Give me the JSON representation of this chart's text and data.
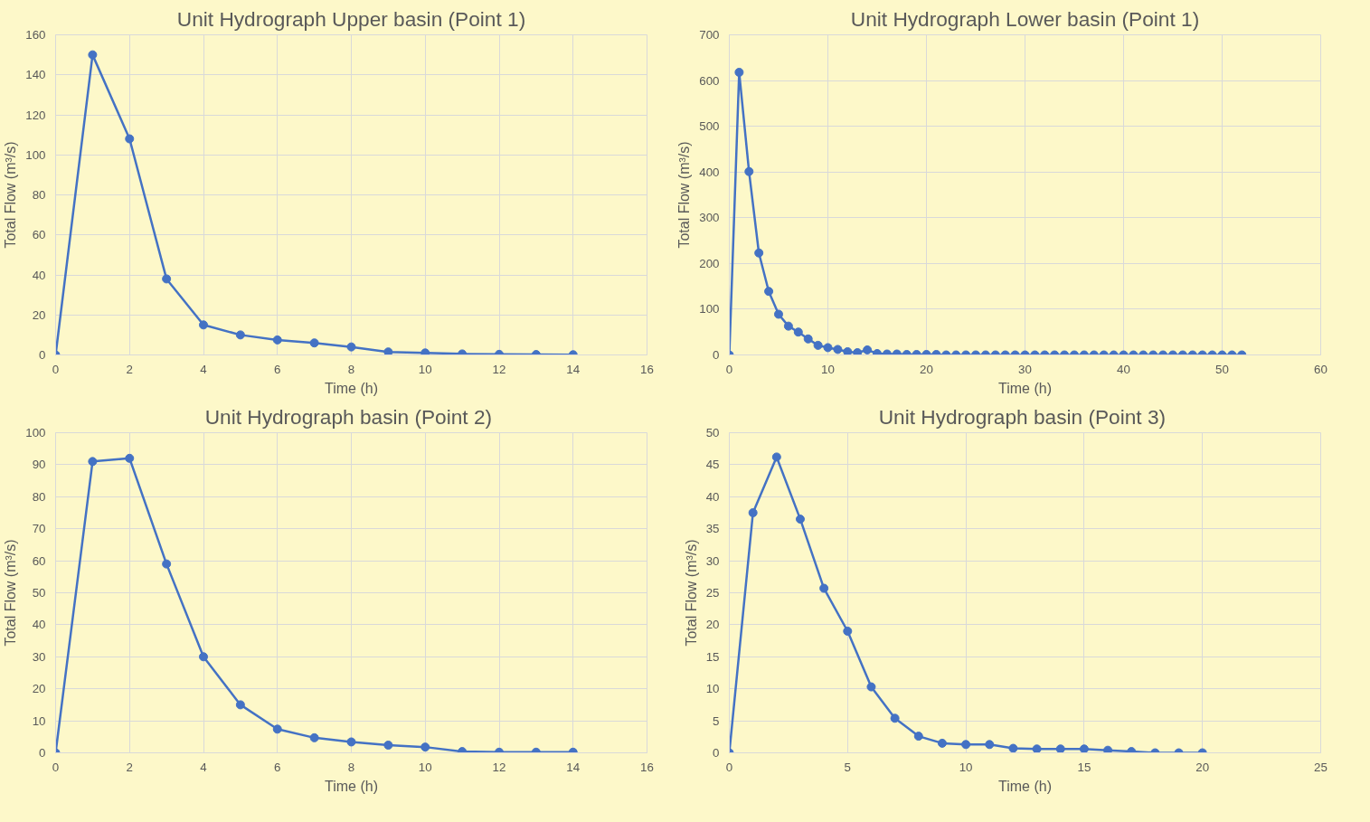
{
  "chart_data": [
    {
      "type": "line",
      "title": "Unit Hydrograph Upper basin (Point 1)",
      "xlabel": "Time (h)",
      "ylabel": "Total Flow (m³/s)",
      "x": [
        0,
        1,
        2,
        3,
        4,
        5,
        6,
        7,
        8,
        9,
        10,
        11,
        12,
        13,
        14
      ],
      "series": [
        {
          "color": "#4472c4",
          "values": [
            0,
            150,
            108,
            38,
            15,
            10,
            7.5,
            6,
            4,
            1.5,
            1,
            0.5,
            0.3,
            0.2,
            0.1
          ]
        }
      ],
      "xlim": [
        0,
        16
      ],
      "xticks": [
        0,
        2,
        4,
        6,
        8,
        10,
        12,
        14,
        16
      ],
      "ylim": [
        0,
        160
      ],
      "yticks": [
        0,
        20,
        40,
        60,
        80,
        100,
        120,
        140,
        160
      ],
      "grid": true,
      "marker": "circle",
      "line_style": "solid"
    },
    {
      "type": "line",
      "title": "Unit Hydrograph Lower basin (Point 1)",
      "xlabel": "Time (h)",
      "ylabel": "Total Flow (m³/s)",
      "x": [
        0,
        1,
        2,
        3,
        4,
        5,
        6,
        7,
        8,
        9,
        10,
        11,
        12,
        13,
        14,
        15,
        16,
        17,
        18,
        19,
        20,
        21,
        22,
        23,
        24,
        25,
        26,
        27,
        28,
        29,
        30,
        31,
        32,
        33,
        34,
        35,
        36,
        37,
        38,
        39,
        40,
        41,
        42,
        43,
        44,
        45,
        46,
        47,
        48,
        49,
        50,
        51,
        52
      ],
      "series": [
        {
          "color": "#4472c4",
          "values": [
            0,
            618,
            401,
            223,
            139,
            89,
            63,
            50,
            35,
            21,
            16,
            12,
            7,
            5,
            11,
            3,
            2,
            2,
            1,
            1,
            1,
            1,
            0,
            0,
            0,
            0,
            0,
            0,
            0,
            0,
            0,
            0,
            0,
            0,
            0,
            0,
            0,
            0,
            0,
            0,
            0,
            0,
            0,
            0,
            0,
            0,
            0,
            0,
            0,
            0,
            0,
            0,
            0
          ]
        }
      ],
      "xlim": [
        0,
        60
      ],
      "xticks": [
        0,
        10,
        20,
        30,
        40,
        50,
        60
      ],
      "ylim": [
        0,
        700
      ],
      "yticks": [
        0,
        100,
        200,
        300,
        400,
        500,
        600,
        700
      ],
      "grid": true,
      "marker": "circle",
      "line_style": "solid"
    },
    {
      "type": "line",
      "title": "Unit Hydrograph  basin (Point 2)",
      "xlabel": "Time (h)",
      "ylabel": "Total Flow (m³/s)",
      "x": [
        0,
        1,
        2,
        3,
        4,
        5,
        6,
        7,
        8,
        9,
        10,
        11,
        12,
        13,
        14
      ],
      "series": [
        {
          "color": "#4472c4",
          "values": [
            0,
            91,
            92,
            59,
            30,
            15,
            7.4,
            4.7,
            3.4,
            2.4,
            1.8,
            0.4,
            0.2,
            0.2,
            0.2
          ]
        }
      ],
      "xlim": [
        0,
        16
      ],
      "xticks": [
        0,
        2,
        4,
        6,
        8,
        10,
        12,
        14,
        16
      ],
      "ylim": [
        0,
        100
      ],
      "yticks": [
        0,
        10,
        20,
        30,
        40,
        50,
        60,
        70,
        80,
        90,
        100
      ],
      "grid": true,
      "marker": "circle",
      "line_style": "solid"
    },
    {
      "type": "line",
      "title": "Unit Hydrograph  basin (Point 3)",
      "xlabel": "Time (h)",
      "ylabel": "Total Flow (m³/s)",
      "x": [
        0,
        1,
        2,
        3,
        4,
        5,
        6,
        7,
        8,
        9,
        10,
        11,
        12,
        13,
        14,
        15,
        16,
        17,
        18,
        19,
        20
      ],
      "series": [
        {
          "color": "#4472c4",
          "values": [
            0,
            37.5,
            46.2,
            36.5,
            25.7,
            19,
            10.3,
            5.4,
            2.6,
            1.5,
            1.3,
            1.3,
            0.7,
            0.6,
            0.6,
            0.6,
            0.4,
            0.2,
            0,
            0,
            0
          ]
        }
      ],
      "xlim": [
        0,
        25
      ],
      "xticks": [
        0,
        5,
        10,
        15,
        20,
        25
      ],
      "ylim": [
        0,
        50
      ],
      "yticks": [
        0,
        5,
        10,
        15,
        20,
        25,
        30,
        35,
        40,
        45,
        50
      ],
      "grid": true,
      "marker": "circle",
      "line_style": "solid"
    }
  ]
}
